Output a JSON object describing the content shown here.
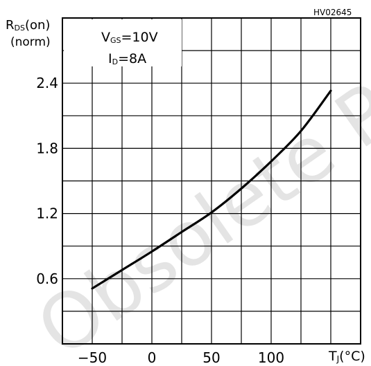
{
  "watermark": "Obsolete Product",
  "chart_data": {
    "type": "line",
    "code": "HV02645",
    "ylabel_main": "R",
    "ylabel_sub": "DS",
    "ylabel_tail": "(on)",
    "ylabel_line2": "(norm)",
    "xlabel_main": "T",
    "xlabel_sub": "J",
    "xlabel_tail": "(°C)",
    "annotations": {
      "vgs_main": "V",
      "vgs_sub": "GS",
      "vgs_value": "=10V",
      "id_main": "I",
      "id_sub": "D",
      "id_value": "=8A"
    },
    "x_ticks": [
      {
        "value": -50,
        "label": "−50"
      },
      {
        "value": 0,
        "label": "0"
      },
      {
        "value": 50,
        "label": "50"
      },
      {
        "value": 100,
        "label": "100"
      }
    ],
    "y_ticks": [
      {
        "value": 0.6,
        "label": "0.6"
      },
      {
        "value": 1.2,
        "label": "1.2"
      },
      {
        "value": 1.8,
        "label": "1.8"
      },
      {
        "value": 2.4,
        "label": "2.4"
      }
    ],
    "xlim": [
      -75,
      175
    ],
    "ylim": [
      0,
      3.0
    ],
    "x_grid_step": 25,
    "y_grid_step": 0.3,
    "grid": true,
    "series": [
      {
        "x": [
          -50,
          -25,
          0,
          25,
          50,
          75,
          100,
          125,
          150
        ],
        "y": [
          0.51,
          0.68,
          0.85,
          1.03,
          1.21,
          1.43,
          1.68,
          1.96,
          2.33
        ]
      }
    ]
  }
}
